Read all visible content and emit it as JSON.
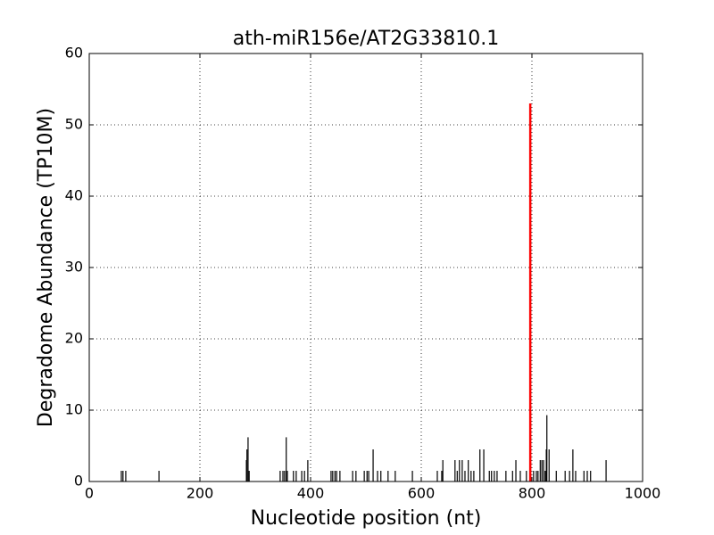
{
  "chart_data": {
    "type": "stem",
    "title": "ath-miR156e/AT2G33810.1",
    "x_label": "Nucleotide position (nt)",
    "y_label": "Degradome Abundance (TP10M)",
    "xlim": [
      0,
      1000
    ],
    "xticks": [
      0,
      200,
      400,
      600,
      800,
      1000
    ],
    "ylim": [
      0,
      60
    ],
    "yticks": [
      0,
      10,
      20,
      30,
      40,
      50,
      60
    ],
    "grid": true,
    "series": [
      {
        "color": "#000000",
        "x": [
          58,
          61,
          66,
          126,
          284,
          285,
          287,
          289,
          345,
          350,
          353,
          356,
          358,
          369,
          374,
          384,
          389,
          395,
          437,
          440,
          444,
          447,
          453,
          476,
          482,
          497,
          502,
          505,
          513,
          521,
          527,
          540,
          553,
          584,
          629,
          637,
          639,
          661,
          665,
          669,
          674,
          679,
          685,
          690,
          695,
          706,
          713,
          723,
          727,
          732,
          737,
          753,
          765,
          771,
          779,
          790,
          803,
          808,
          811,
          815,
          818,
          821,
          824,
          826,
          827,
          831,
          844,
          860,
          868,
          874,
          879,
          894,
          900,
          906,
          934
        ],
        "values": [
          1.5,
          1.5,
          1.5,
          1.5,
          3,
          4.5,
          6.2,
          1.5,
          1.5,
          1.5,
          1.5,
          6.2,
          1.5,
          1.5,
          1.5,
          1.5,
          1.5,
          3,
          1.5,
          1.5,
          1.5,
          1.5,
          1.5,
          1.5,
          1.5,
          1.5,
          1.5,
          1.5,
          4.5,
          1.5,
          1.5,
          1.5,
          1.5,
          1.5,
          1.5,
          1.5,
          3,
          3,
          1.5,
          3,
          3,
          1.5,
          3,
          1.5,
          1.5,
          4.5,
          4.5,
          1.5,
          1.5,
          1.5,
          1.5,
          1.5,
          1.5,
          3,
          1.5,
          1.5,
          1.5,
          1.5,
          1.5,
          3,
          3,
          3,
          1.5,
          4.5,
          9.3,
          4.5,
          1.5,
          1.5,
          1.5,
          4.5,
          1.5,
          1.5,
          1.5,
          1.5,
          3
        ]
      },
      {
        "color": "#ff0000",
        "x": [
          797
        ],
        "values": [
          53
        ]
      }
    ]
  }
}
